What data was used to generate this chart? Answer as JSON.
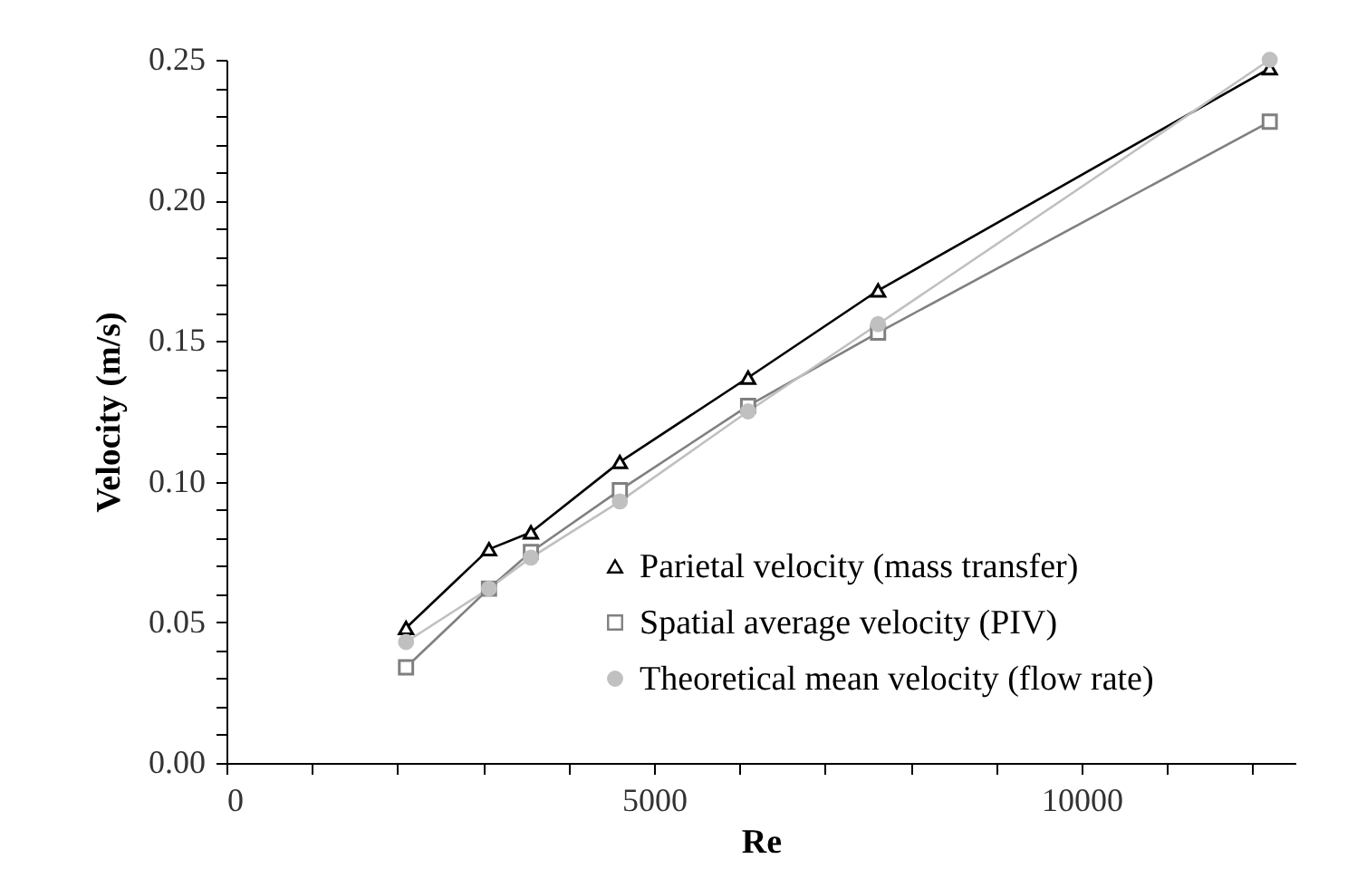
{
  "chart_data": {
    "type": "line",
    "xlabel": "Re",
    "ylabel": "Velocity  (m/s)",
    "x": [
      2100,
      3070,
      3560,
      4600,
      6100,
      7620,
      12200
    ],
    "series": [
      {
        "name": "Parietal velocity (mass transfer)",
        "color": "#000000",
        "marker": "triangle",
        "values": [
          0.048,
          0.076,
          0.082,
          0.107,
          0.137,
          0.168,
          0.247
        ]
      },
      {
        "name": "Spatial average velocity (PIV)",
        "color": "#808080",
        "marker": "square",
        "values": [
          0.034,
          0.062,
          0.075,
          0.097,
          0.127,
          0.153,
          0.228
        ]
      },
      {
        "name": "Theoretical mean velocity (flow rate)",
        "color": "#c0c0c0",
        "marker": "circle",
        "values": [
          0.043,
          0.062,
          0.073,
          0.093,
          0.125,
          0.156,
          0.25
        ]
      }
    ],
    "xlim": [
      0,
      12500
    ],
    "xticks": [
      0,
      {
        "value": 1000,
        "label": null
      },
      {
        "value": 2000,
        "label": null
      },
      {
        "value": 3000,
        "label": null
      },
      {
        "value": 4000,
        "label": null
      },
      5000,
      {
        "value": 6000,
        "label": null
      },
      {
        "value": 7000,
        "label": null
      },
      {
        "value": 8000,
        "label": null
      },
      {
        "value": 9000,
        "label": null
      },
      10000,
      {
        "value": 11000,
        "label": null
      },
      {
        "value": 12000,
        "label": null
      }
    ],
    "ylim": [
      0,
      0.25
    ],
    "yticks": [
      {
        "value": 0,
        "label": "0.00"
      },
      {
        "value": 0.01,
        "label": null
      },
      {
        "value": 0.02,
        "label": null
      },
      {
        "value": 0.03,
        "label": null
      },
      {
        "value": 0.04,
        "label": null
      },
      {
        "value": 0.05,
        "label": "0.05"
      },
      {
        "value": 0.06,
        "label": null
      },
      {
        "value": 0.07,
        "label": null
      },
      {
        "value": 0.08,
        "label": null
      },
      {
        "value": 0.09,
        "label": null
      },
      {
        "value": 0.1,
        "label": "0.10"
      },
      {
        "value": 0.11,
        "label": null
      },
      {
        "value": 0.12,
        "label": null
      },
      {
        "value": 0.13,
        "label": null
      },
      {
        "value": 0.14,
        "label": null
      },
      {
        "value": 0.15,
        "label": "0.15"
      },
      {
        "value": 0.16,
        "label": null
      },
      {
        "value": 0.17,
        "label": null
      },
      {
        "value": 0.18,
        "label": null
      },
      {
        "value": 0.19,
        "label": null
      },
      {
        "value": 0.2,
        "label": "0.20"
      },
      {
        "value": 0.21,
        "label": null
      },
      {
        "value": 0.22,
        "label": null
      },
      {
        "value": 0.23,
        "label": null
      },
      {
        "value": 0.24,
        "label": null
      },
      {
        "value": 0.25,
        "label": "0.25"
      }
    ],
    "grid": false,
    "legend": "bottom right"
  }
}
